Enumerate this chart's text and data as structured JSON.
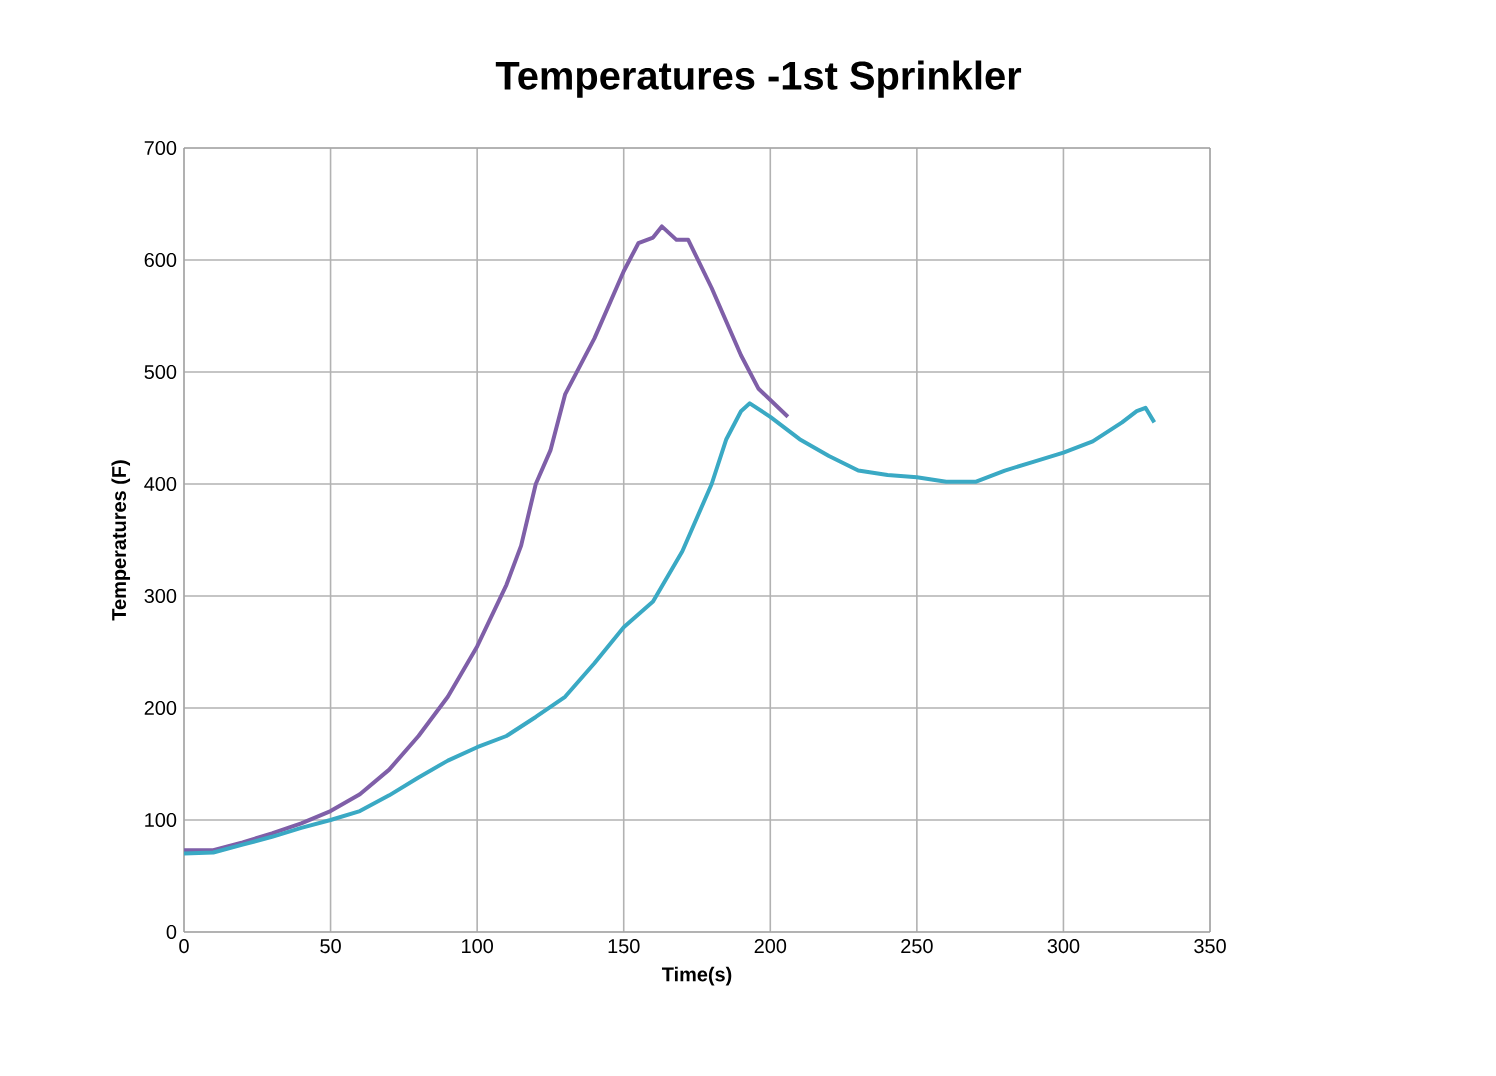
{
  "chart_data": {
    "type": "line",
    "title": "Temperatures -1st Sprinkler",
    "xlabel": "Time(s)",
    "ylabel": "Temperatures (F)",
    "xlim": [
      0,
      350
    ],
    "xticks": [
      0,
      50,
      100,
      150,
      200,
      250,
      300,
      350
    ],
    "ylim": [
      0,
      700
    ],
    "yticks": [
      0,
      100,
      200,
      300,
      400,
      500,
      600,
      700
    ],
    "grid": true,
    "marker": "none",
    "line_style": "solid",
    "series": [
      {
        "color": "#7f5fa8",
        "x": [
          0,
          10,
          20,
          30,
          40,
          50,
          60,
          70,
          80,
          90,
          100,
          110,
          115,
          120,
          125,
          130,
          140,
          145,
          150,
          155,
          160,
          163,
          168,
          172,
          180,
          190,
          196,
          206
        ],
        "values": [
          73,
          73,
          80,
          88,
          97,
          108,
          123,
          145,
          175,
          210,
          255,
          310,
          345,
          400,
          430,
          480,
          530,
          560,
          590,
          615,
          620,
          630,
          618,
          618,
          575,
          515,
          485,
          460
        ]
      },
      {
        "color": "#3aa9c4",
        "x": [
          0,
          10,
          20,
          30,
          40,
          50,
          60,
          70,
          80,
          90,
          100,
          110,
          120,
          130,
          140,
          150,
          160,
          170,
          175,
          180,
          185,
          190,
          193,
          200,
          210,
          220,
          230,
          240,
          250,
          260,
          270,
          280,
          290,
          300,
          310,
          320,
          325,
          328,
          331
        ],
        "values": [
          70,
          71,
          78,
          85,
          93,
          100,
          108,
          122,
          138,
          153,
          165,
          175,
          192,
          210,
          240,
          272,
          295,
          340,
          370,
          400,
          440,
          465,
          472,
          460,
          440,
          425,
          412,
          408,
          406,
          402,
          402,
          412,
          420,
          428,
          438,
          455,
          465,
          468,
          455
        ]
      }
    ]
  }
}
